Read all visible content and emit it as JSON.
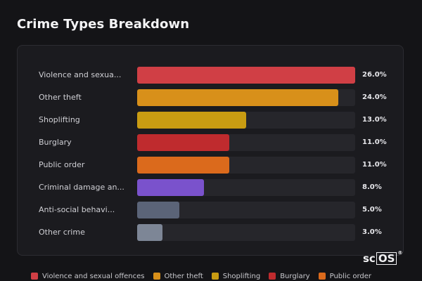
{
  "title": "Crime Types Breakdown",
  "chart_data": {
    "type": "bar",
    "orientation": "horizontal",
    "title": "Crime Types Breakdown",
    "unit": "%",
    "xlim": [
      0,
      26
    ],
    "categories": [
      "Violence and sexua...",
      "Other theft",
      "Shoplifting",
      "Burglary",
      "Public order",
      "Criminal damage an...",
      "Anti-social behavi...",
      "Other crime"
    ],
    "values": [
      26.0,
      24.0,
      13.0,
      11.0,
      11.0,
      8.0,
      5.0,
      3.0
    ],
    "value_labels": [
      "26.0%",
      "24.0%",
      "13.0%",
      "11.0%",
      "11.0%",
      "8.0%",
      "5.0%",
      "3.0%"
    ],
    "colors": [
      "#d03f45",
      "#d8901a",
      "#c99c12",
      "#bf2b2e",
      "#db6a1c",
      "#7a52cc",
      "#5b6478",
      "#7d8696"
    ],
    "legend": [
      {
        "label": "Violence and sexual offences",
        "color": "#d03f45"
      },
      {
        "label": "Other theft",
        "color": "#d8901a"
      },
      {
        "label": "Shoplifting",
        "color": "#c99c12"
      },
      {
        "label": "Burglary",
        "color": "#bf2b2e"
      },
      {
        "label": "Public order",
        "color": "#db6a1c"
      }
    ],
    "legend_position": "bottom"
  },
  "logo": {
    "text_a": "sc",
    "text_b": "OS",
    "mark": "®"
  }
}
